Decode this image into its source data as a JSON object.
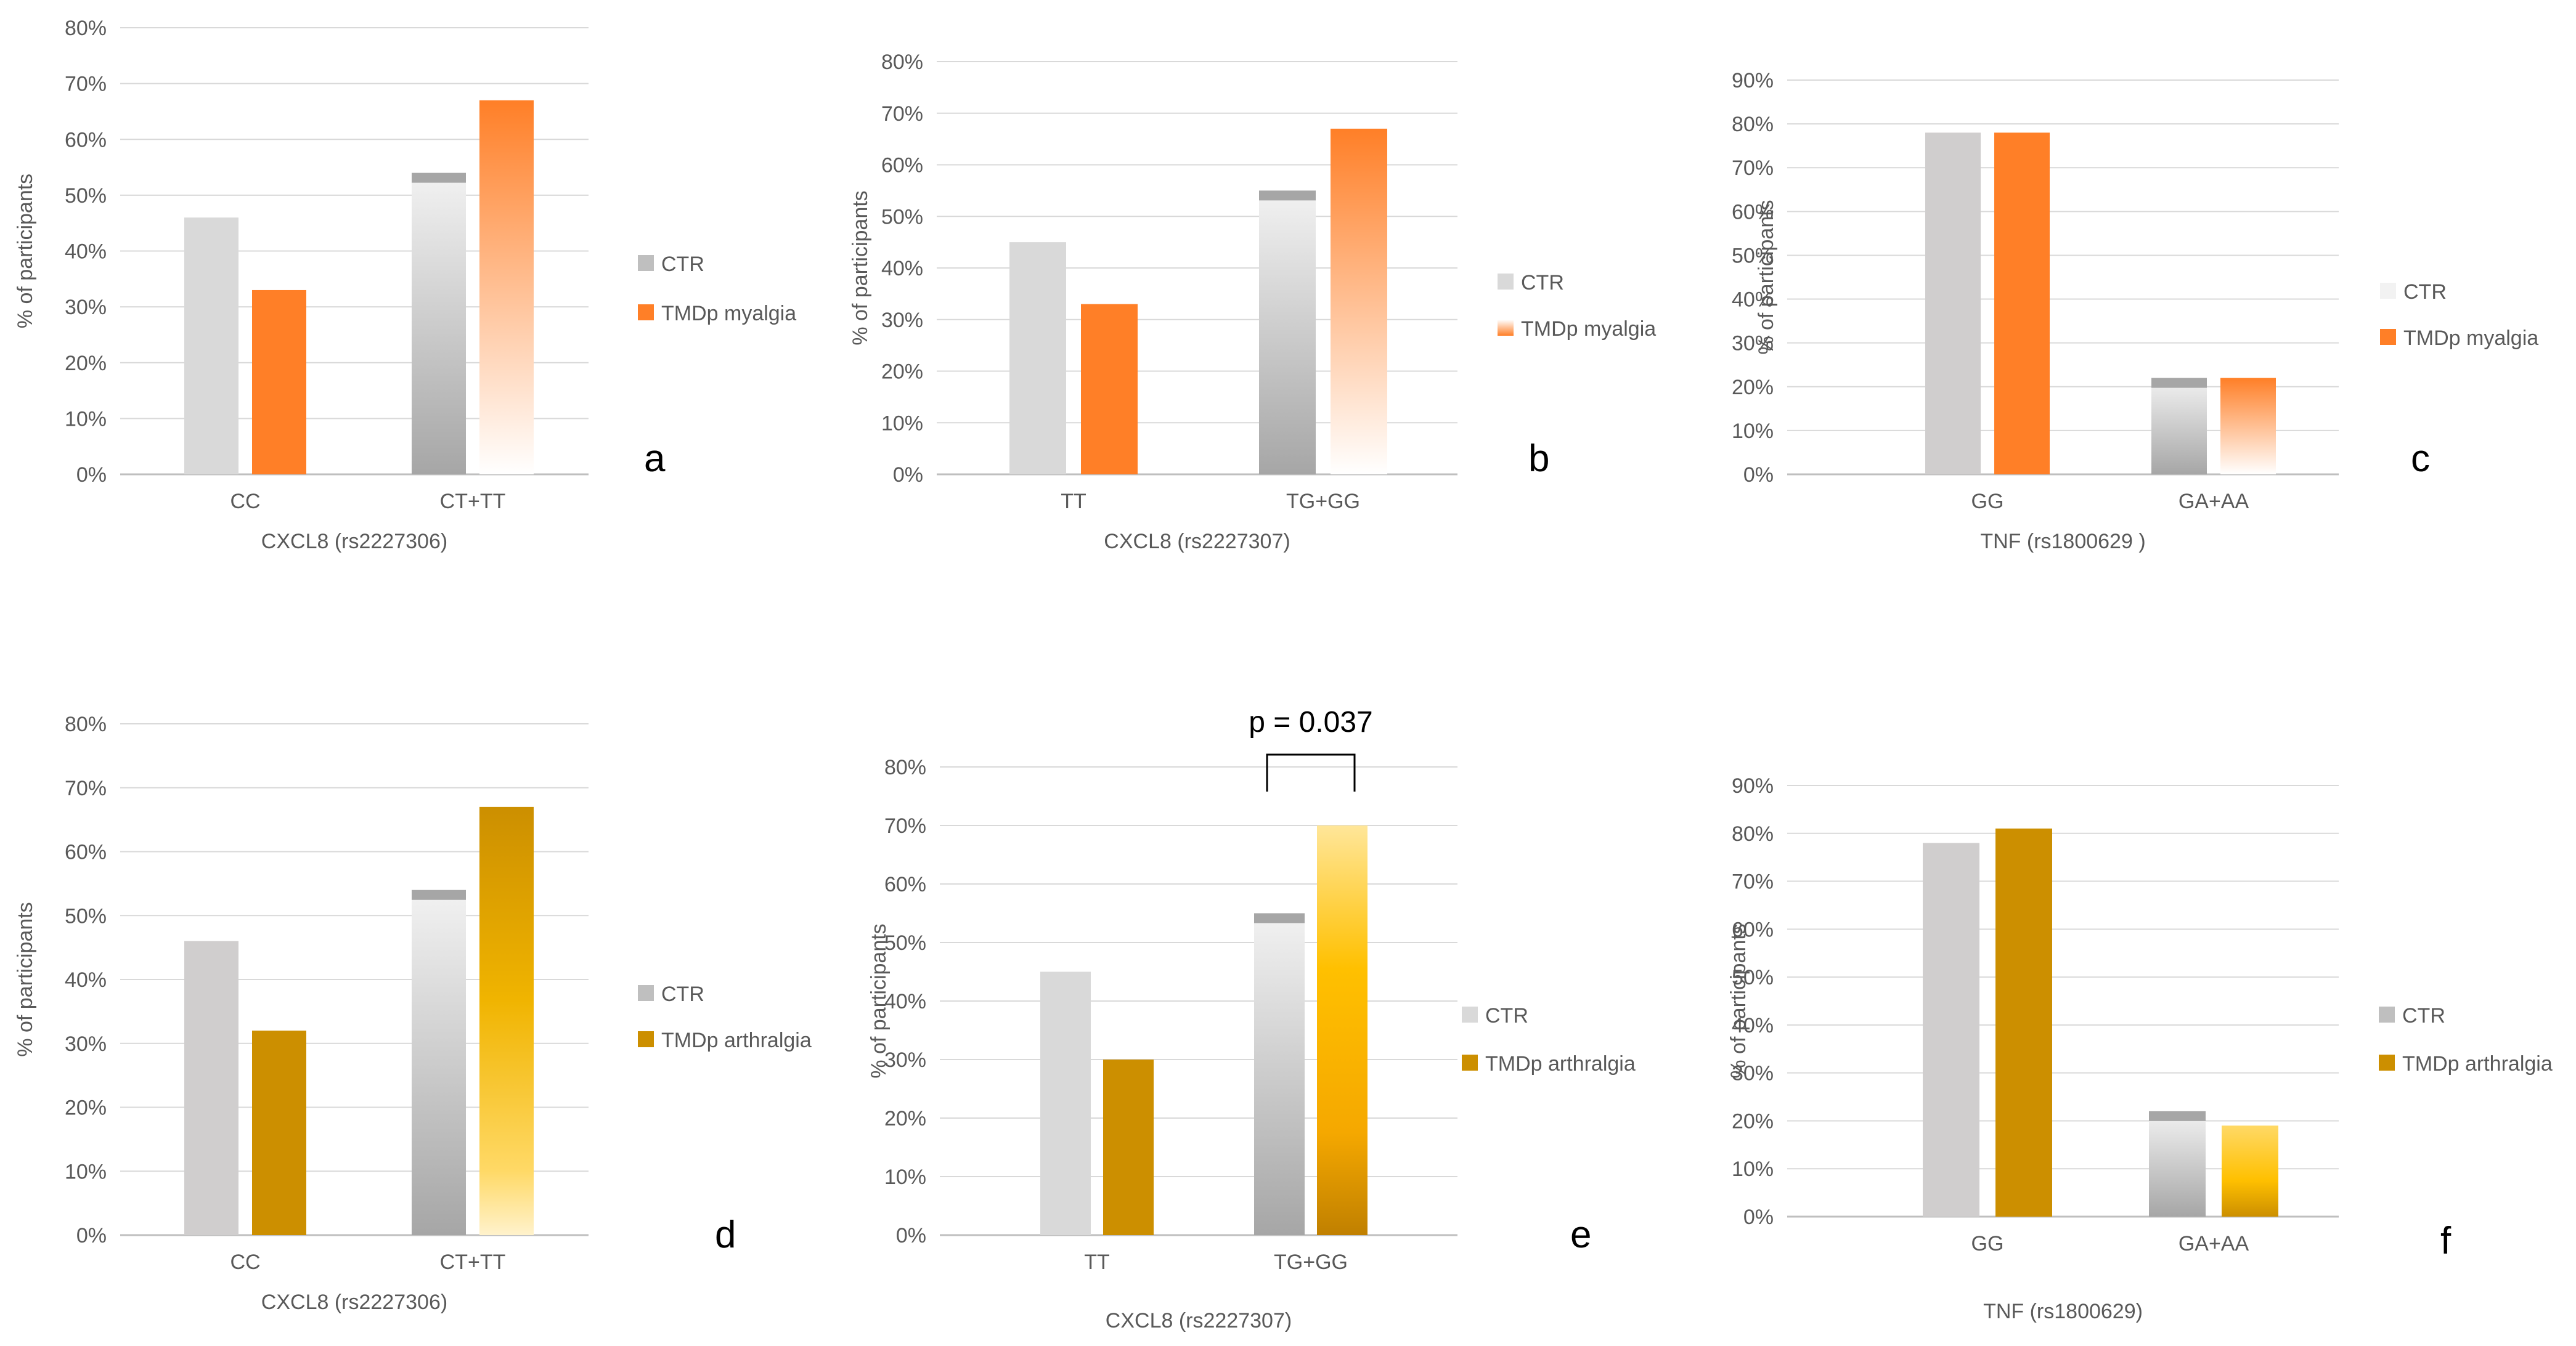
{
  "colors": {
    "grid": "#d9d9d9",
    "axis": "#bfbfbf",
    "tick_text": "#595959",
    "ctr": "#d9d9d9",
    "ctr_dark": "#a6a6a6",
    "ctr_mid": "#cfcfcf",
    "ctr_light": "#f2f2f2",
    "myalgia": "#ff7f27",
    "myalgia_light": "#ffffff",
    "arthralgia": "#cc8f00",
    "arthralgia_yellow": "#ffc000",
    "arthralgia_light": "#ffe699"
  },
  "chart_data": [
    {
      "type": "bar",
      "panel_label": "a",
      "categories": [
        "CC",
        "CT+TT"
      ],
      "series": [
        {
          "name": "CTR",
          "values": [
            46,
            54
          ]
        },
        {
          "name": "TMDp myalgia",
          "values": [
            33,
            67
          ]
        }
      ],
      "xlabel": "CXCL8 (rs2227306)",
      "ylabel": "% of participants",
      "ylim": [
        0,
        80
      ],
      "ytick_step": 10,
      "yticks": [
        "0%",
        "10%",
        "20%",
        "30%",
        "40%",
        "50%",
        "60%",
        "70%",
        "80%"
      ],
      "annotation": null
    },
    {
      "type": "bar",
      "panel_label": "b",
      "categories": [
        "TT",
        "TG+GG"
      ],
      "series": [
        {
          "name": "CTR",
          "values": [
            45,
            55
          ]
        },
        {
          "name": "TMDp myalgia",
          "values": [
            33,
            67
          ]
        }
      ],
      "xlabel": "CXCL8 (rs2227307)",
      "ylabel": "% of participants",
      "ylim": [
        0,
        80
      ],
      "ytick_step": 10,
      "yticks": [
        "0%",
        "10%",
        "20%",
        "30%",
        "40%",
        "50%",
        "60%",
        "70%",
        "80%"
      ],
      "annotation": null
    },
    {
      "type": "bar",
      "panel_label": "c",
      "categories": [
        "GG",
        "GA+AA"
      ],
      "series": [
        {
          "name": "CTR",
          "values": [
            78,
            22
          ]
        },
        {
          "name": "TMDp myalgia",
          "values": [
            78,
            22
          ]
        }
      ],
      "xlabel": "TNF (rs1800629 )",
      "ylabel": "% of participants",
      "ylim": [
        0,
        90
      ],
      "ytick_step": 10,
      "yticks": [
        "0%",
        "10%",
        "20%",
        "30%",
        "40%",
        "50%",
        "60%",
        "70%",
        "80%",
        "90%"
      ],
      "annotation": null
    },
    {
      "type": "bar",
      "panel_label": "d",
      "categories": [
        "CC",
        "CT+TT"
      ],
      "series": [
        {
          "name": "CTR",
          "values": [
            46,
            54
          ]
        },
        {
          "name": "TMDp arthralgia",
          "values": [
            32,
            67
          ]
        }
      ],
      "xlabel": "CXCL8 (rs2227306)",
      "ylabel": "% of participants",
      "ylim": [
        0,
        80
      ],
      "ytick_step": 10,
      "yticks": [
        "0%",
        "10%",
        "20%",
        "30%",
        "40%",
        "50%",
        "60%",
        "70%",
        "80%"
      ],
      "annotation": null
    },
    {
      "type": "bar",
      "panel_label": "e",
      "categories": [
        "TT",
        "TG+GG"
      ],
      "series": [
        {
          "name": "CTR",
          "values": [
            45,
            55
          ]
        },
        {
          "name": "TMDp arthralgia",
          "values": [
            30,
            70
          ]
        }
      ],
      "xlabel": "CXCL8 (rs2227307)",
      "ylabel": "% of participants",
      "ylim": [
        0,
        80
      ],
      "ytick_step": 10,
      "yticks": [
        "0%",
        "10%",
        "20%",
        "30%",
        "40%",
        "50%",
        "60%",
        "70%",
        "80%"
      ],
      "annotation": {
        "text": "p = 0.037",
        "category_index": 1
      }
    },
    {
      "type": "bar",
      "panel_label": "f",
      "categories": [
        "GG",
        "GA+AA"
      ],
      "series": [
        {
          "name": "CTR",
          "values": [
            78,
            22
          ]
        },
        {
          "name": "TMDp arthralgia",
          "values": [
            81,
            19
          ]
        }
      ],
      "xlabel": "TNF (rs1800629)",
      "ylabel": "% of participants",
      "ylim": [
        0,
        90
      ],
      "ytick_step": 10,
      "yticks": [
        "0%",
        "10%",
        "20%",
        "30%",
        "40%",
        "50%",
        "60%",
        "70%",
        "80%",
        "90%"
      ],
      "annotation": null
    }
  ]
}
